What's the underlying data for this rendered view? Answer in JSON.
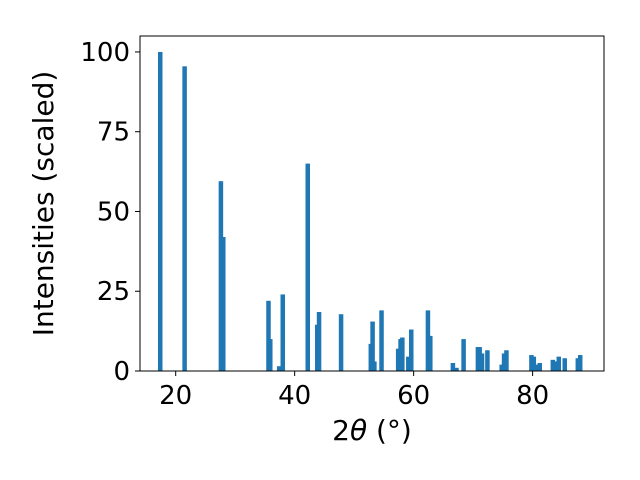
{
  "chart_data": {
    "type": "bar",
    "xlabel_main": "2",
    "xlabel_theta": "θ",
    "xlabel_unit": " (°)",
    "ylabel": "Intensities (scaled)",
    "xlim": [
      14,
      92
    ],
    "ylim": [
      0,
      105
    ],
    "xticks": [
      20,
      40,
      60,
      80
    ],
    "yticks": [
      0,
      25,
      50,
      75,
      100
    ],
    "grid": false,
    "bar_color": "#1f77b4",
    "x": [
      17.4,
      21.5,
      27.6,
      28.0,
      35.6,
      35.9,
      37.4,
      38.0,
      42.2,
      43.8,
      44.1,
      47.8,
      52.8,
      53.1,
      53.4,
      54.6,
      57.4,
      57.8,
      58.1,
      59.1,
      59.6,
      62.4,
      62.8,
      66.6,
      67.2,
      68.4,
      70.8,
      71.1,
      71.5,
      72.4,
      74.8,
      75.2,
      75.6,
      79.8,
      80.2,
      80.6,
      81.2,
      83.4,
      83.8,
      84.4,
      85.4,
      87.6,
      88.0
    ],
    "values": [
      100,
      95.5,
      59.5,
      42,
      22,
      10,
      1.5,
      24,
      65,
      14.5,
      18.5,
      17.8,
      8.5,
      15.5,
      3,
      19,
      7,
      10,
      10.5,
      4.5,
      13,
      19,
      11,
      2.5,
      1,
      10,
      7.5,
      7.5,
      5.5,
      6.5,
      2,
      5.5,
      6.5,
      5,
      4.5,
      2,
      2.5,
      3.5,
      3,
      4.5,
      4,
      4,
      5
    ]
  }
}
